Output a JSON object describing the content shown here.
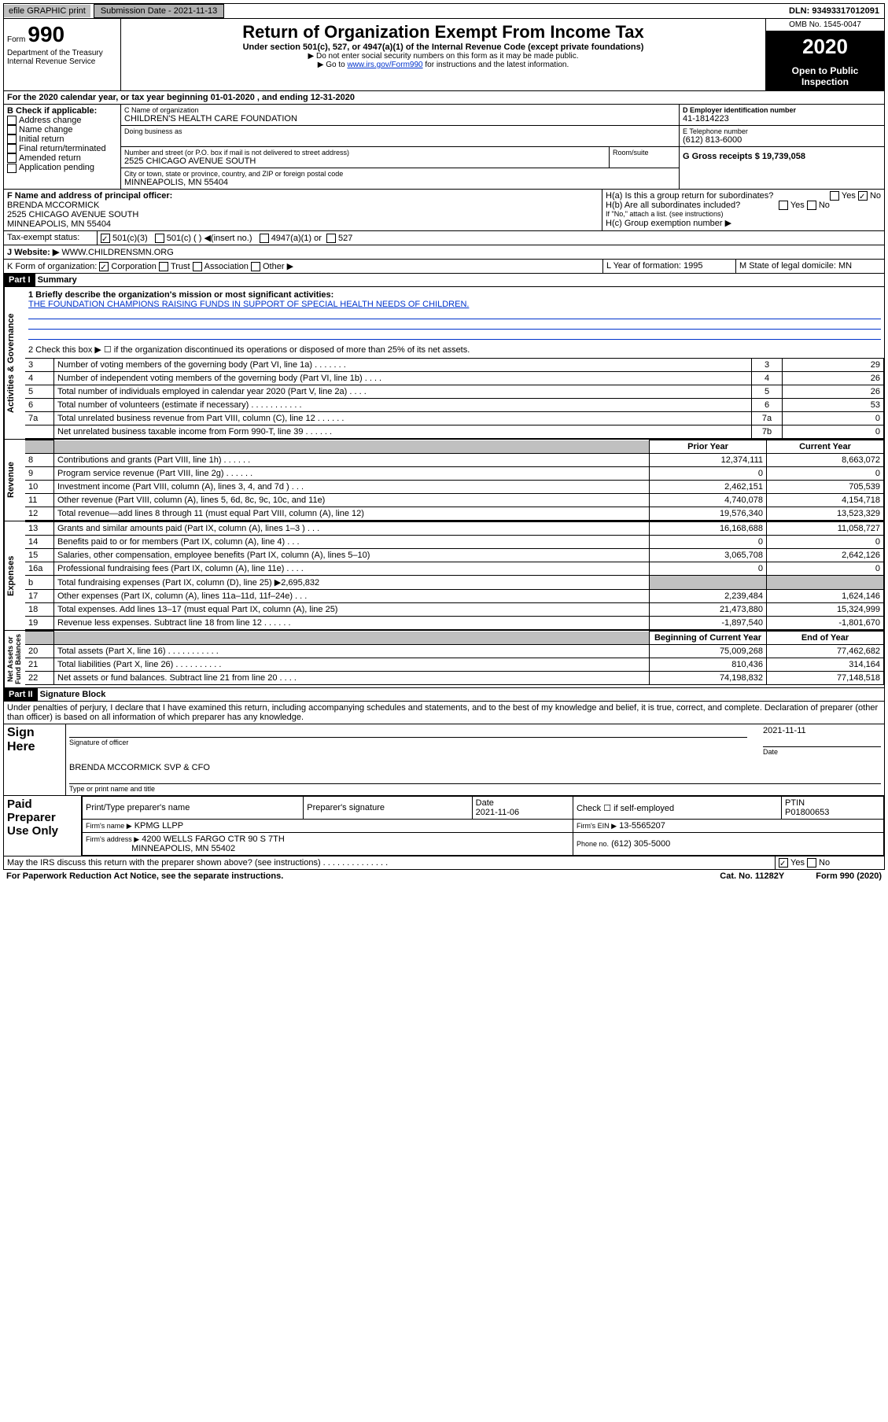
{
  "header_bar": {
    "efile": "efile GRAPHIC print",
    "submission": "Submission Date - 2021-11-13",
    "dln": "DLN: 93493317012091"
  },
  "title_block": {
    "form_small": "Form",
    "form_big": "990",
    "dept": "Department of the Treasury\nInternal Revenue Service",
    "main_title": "Return of Organization Exempt From Income Tax",
    "sub1": "Under section 501(c), 527, or 4947(a)(1) of the Internal Revenue Code (except private foundations)",
    "sub2": "▶ Do not enter social security numbers on this form as it may be made public.",
    "sub3_pre": "▶ Go to ",
    "sub3_link": "www.irs.gov/Form990",
    "sub3_post": " for instructions and the latest information.",
    "omb": "OMB No. 1545-0047",
    "year": "2020",
    "inspect": "Open to Public Inspection"
  },
  "period": "For the 2020 calendar year, or tax year beginning 01-01-2020     , and ending 12-31-2020",
  "boxB": {
    "label": "B Check if applicable:",
    "items": [
      "Address change",
      "Name change",
      "Initial return",
      "Final return/terminated",
      "Amended return",
      "Application pending"
    ]
  },
  "boxC": {
    "name_lbl": "C Name of organization",
    "name": "CHILDREN'S HEALTH CARE FOUNDATION",
    "dba_lbl": "Doing business as",
    "addr_lbl": "Number and street (or P.O. box if mail is not delivered to street address)",
    "room_lbl": "Room/suite",
    "addr": "2525 CHICAGO AVENUE SOUTH",
    "city_lbl": "City or town, state or province, country, and ZIP or foreign postal code",
    "city": "MINNEAPOLIS, MN  55404"
  },
  "boxD": {
    "lbl": "D Employer identification number",
    "val": "41-1814223"
  },
  "boxE": {
    "lbl": "E Telephone number",
    "val": "(612) 813-6000"
  },
  "boxG": {
    "lbl": "G Gross receipts $ 19,739,058"
  },
  "boxF": {
    "lbl": "F  Name and address of principal officer:",
    "name": "BRENDA MCCORMICK",
    "addr": "2525 CHICAGO AVENUE SOUTH",
    "city": "MINNEAPOLIS, MN  55404"
  },
  "boxH": {
    "ha": "H(a)  Is this a group return for subordinates?",
    "hb": "H(b)  Are all subordinates included?",
    "hb_note": "If \"No,\" attach a list. (see instructions)",
    "hc": "H(c)  Group exemption number ▶",
    "yes": "Yes",
    "no": "No"
  },
  "taxex": {
    "lbl": "Tax-exempt status:",
    "o1": "501(c)(3)",
    "o2": "501(c) (  ) ◀(insert no.)",
    "o3": "4947(a)(1) or",
    "o4": "527"
  },
  "boxJ": {
    "lbl": "J  Website: ▶",
    "val": "WWW.CHILDRENSMN.ORG"
  },
  "boxK": {
    "lbl": "K Form of organization:",
    "o1": "Corporation",
    "o2": "Trust",
    "o3": "Association",
    "o4": "Other ▶"
  },
  "boxL": {
    "lbl": "L Year of formation: 1995"
  },
  "boxM": {
    "lbl": "M State of legal domicile: MN"
  },
  "part1_hdr": {
    "part": "Part I",
    "title": "Summary"
  },
  "summary": {
    "q1": "1  Briefly describe the organization's mission or most significant activities:",
    "q1a": "THE FOUNDATION CHAMPIONS RAISING FUNDS IN SUPPORT OF SPECIAL HEALTH NEEDS OF CHILDREN.",
    "q2": "2    Check this box ▶ ☐  if the organization discontinued its operations or disposed of more than 25% of its net assets.",
    "rows": [
      {
        "n": "3",
        "t": "Number of voting members of the governing body (Part VI, line 1a) . . . . . . .",
        "b": "3",
        "v": "29"
      },
      {
        "n": "4",
        "t": "Number of independent voting members of the governing body (Part VI, line 1b) . . . .",
        "b": "4",
        "v": "26"
      },
      {
        "n": "5",
        "t": "Total number of individuals employed in calendar year 2020 (Part V, line 2a) . . . .",
        "b": "5",
        "v": "26"
      },
      {
        "n": "6",
        "t": "Total number of volunteers (estimate if necessary) . . . . . . . . . . .",
        "b": "6",
        "v": "53"
      },
      {
        "n": "7a",
        "t": "Total unrelated business revenue from Part VIII, column (C), line 12 . . . . . .",
        "b": "7a",
        "v": "0"
      },
      {
        "n": "",
        "t": "Net unrelated business taxable income from Form 990-T, line 39 . . . . . .",
        "b": "7b",
        "v": "0"
      }
    ],
    "py": "Prior Year",
    "cy": "Current Year",
    "rev": [
      {
        "n": "8",
        "t": "Contributions and grants (Part VIII, line 1h) . . . . . .",
        "p": "12,374,111",
        "c": "8,663,072"
      },
      {
        "n": "9",
        "t": "Program service revenue (Part VIII, line 2g) . . . . . .",
        "p": "0",
        "c": "0"
      },
      {
        "n": "10",
        "t": "Investment income (Part VIII, column (A), lines 3, 4, and 7d ) . . .",
        "p": "2,462,151",
        "c": "705,539"
      },
      {
        "n": "11",
        "t": "Other revenue (Part VIII, column (A), lines 5, 6d, 8c, 9c, 10c, and 11e)",
        "p": "4,740,078",
        "c": "4,154,718"
      },
      {
        "n": "12",
        "t": "Total revenue—add lines 8 through 11 (must equal Part VIII, column (A), line 12)",
        "p": "19,576,340",
        "c": "13,523,329"
      }
    ],
    "exp": [
      {
        "n": "13",
        "t": "Grants and similar amounts paid (Part IX, column (A), lines 1–3 ) . . .",
        "p": "16,168,688",
        "c": "11,058,727"
      },
      {
        "n": "14",
        "t": "Benefits paid to or for members (Part IX, column (A), line 4) . . .",
        "p": "0",
        "c": "0"
      },
      {
        "n": "15",
        "t": "Salaries, other compensation, employee benefits (Part IX, column (A), lines 5–10)",
        "p": "3,065,708",
        "c": "2,642,126"
      },
      {
        "n": "16a",
        "t": "Professional fundraising fees (Part IX, column (A), line 11e) . . . .",
        "p": "0",
        "c": "0"
      },
      {
        "n": "b",
        "t": "Total fundraising expenses (Part IX, column (D), line 25) ▶2,695,832",
        "p": "",
        "c": "",
        "grey": true
      },
      {
        "n": "17",
        "t": "Other expenses (Part IX, column (A), lines 11a–11d, 11f–24e) . . .",
        "p": "2,239,484",
        "c": "1,624,146"
      },
      {
        "n": "18",
        "t": "Total expenses. Add lines 13–17 (must equal Part IX, column (A), line 25)",
        "p": "21,473,880",
        "c": "15,324,999"
      },
      {
        "n": "19",
        "t": "Revenue less expenses. Subtract line 18 from line 12 . . . . . .",
        "p": "-1,897,540",
        "c": "-1,801,670"
      }
    ],
    "boy": "Beginning of Current Year",
    "eoy": "End of Year",
    "net": [
      {
        "n": "20",
        "t": "Total assets (Part X, line 16) . . . . . . . . . . .",
        "p": "75,009,268",
        "c": "77,462,682"
      },
      {
        "n": "21",
        "t": "Total liabilities (Part X, line 26) . . . . . . . . . .",
        "p": "810,436",
        "c": "314,164"
      },
      {
        "n": "22",
        "t": "Net assets or fund balances. Subtract line 21 from line 20 . . . .",
        "p": "74,198,832",
        "c": "77,148,518"
      }
    ]
  },
  "vert_labels": {
    "ag": "Activities & Governance",
    "rev": "Revenue",
    "exp": "Expenses",
    "net": "Net Assets or\nFund Balances"
  },
  "part2_hdr": {
    "part": "Part II",
    "title": "Signature Block"
  },
  "perjury": "Under penalties of perjury, I declare that I have examined this return, including accompanying schedules and statements, and to the best of my knowledge and belief, it is true, correct, and complete. Declaration of preparer (other than officer) is based on all information of which preparer has any knowledge.",
  "sign": {
    "here": "Sign Here",
    "sig_lbl": "Signature of officer",
    "date_lbl": "Date",
    "date": "2021-11-11",
    "name": "BRENDA MCCORMICK SVP & CFO",
    "name_lbl": "Type or print name and title"
  },
  "paid": {
    "lbl": "Paid Preparer Use Only",
    "h1": "Print/Type preparer's name",
    "h2": "Preparer's signature",
    "h3": "Date",
    "h3v": "2021-11-06",
    "h4": "Check ☐ if self-employed",
    "h5": "PTIN",
    "h5v": "P01800653",
    "firm_lbl": "Firm's name   ▶",
    "firm": "KPMG LLPP",
    "ein_lbl": "Firm's EIN ▶",
    "ein": "13-5565207",
    "addr_lbl": "Firm's address ▶",
    "addr": "4200 WELLS FARGO CTR 90 S 7TH",
    "addr2": "MINNEAPOLIS, MN  55402",
    "phone_lbl": "Phone no.",
    "phone": "(612) 305-5000"
  },
  "footer": {
    "discuss": "May the IRS discuss this return with the preparer shown above? (see instructions) . . . . . . . . . . . . . .",
    "yes": "Yes",
    "no": "No",
    "pra": "For Paperwork Reduction Act Notice, see the separate instructions.",
    "cat": "Cat. No. 11282Y",
    "form": "Form 990 (2020)"
  }
}
